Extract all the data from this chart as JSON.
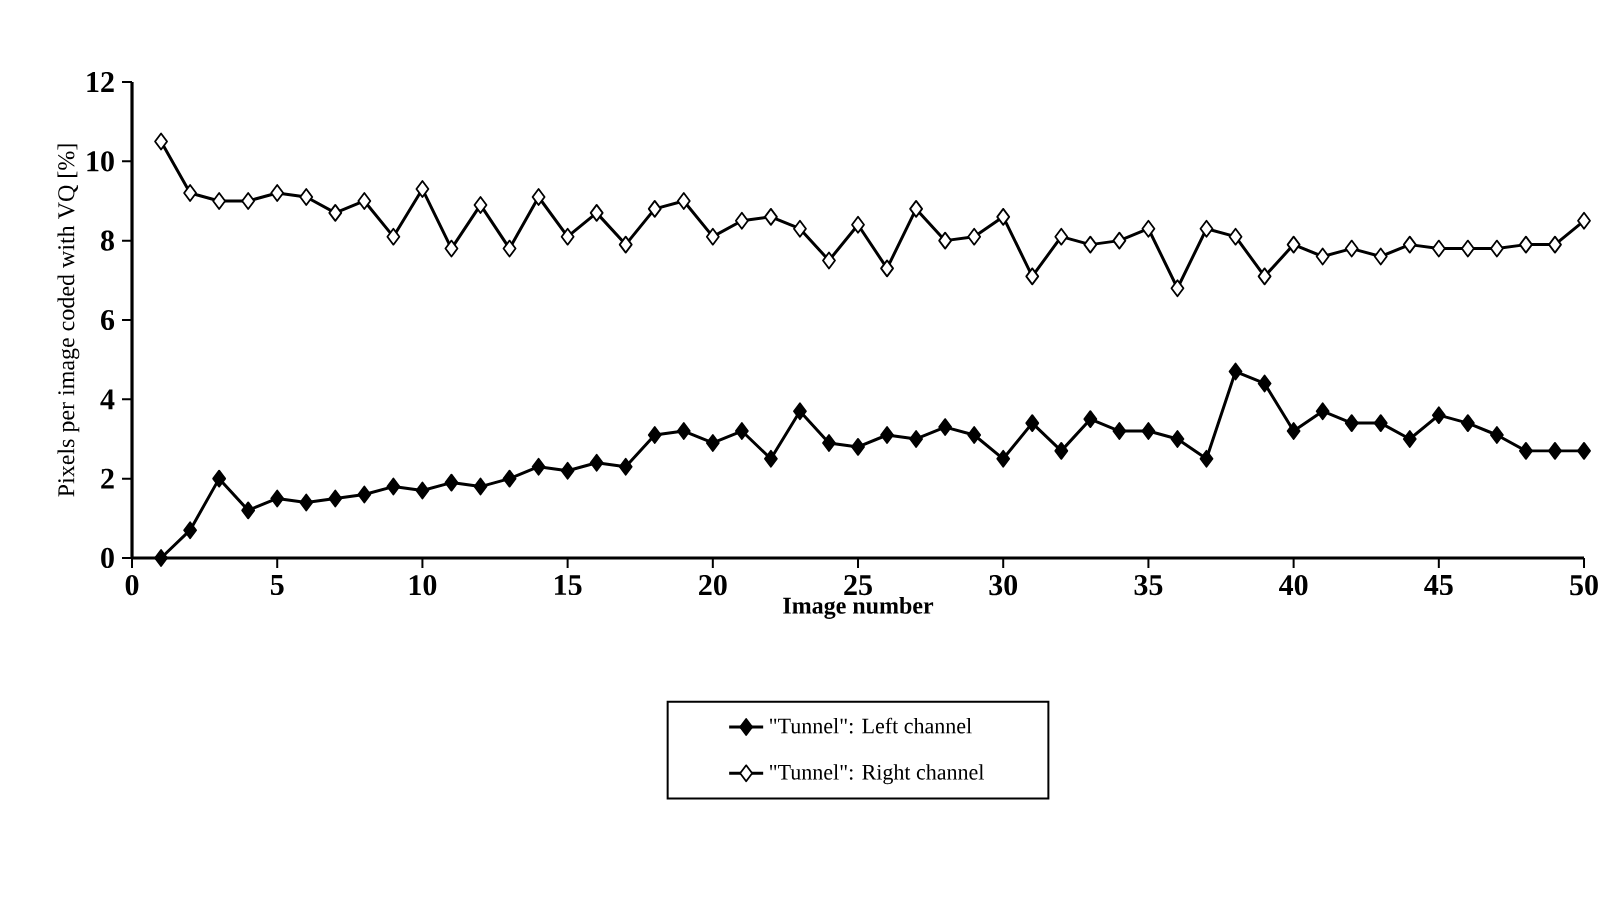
{
  "chart_data": {
    "type": "line",
    "xlabel": "Image number",
    "ylabel": "Pixels per image coded with VQ [%]",
    "x": [
      1,
      2,
      3,
      4,
      5,
      6,
      7,
      8,
      9,
      10,
      11,
      12,
      13,
      14,
      15,
      16,
      17,
      18,
      19,
      20,
      21,
      22,
      23,
      24,
      25,
      26,
      27,
      28,
      29,
      30,
      31,
      32,
      33,
      34,
      35,
      36,
      37,
      38,
      39,
      40,
      41,
      42,
      43,
      44,
      45,
      46,
      47,
      48,
      49,
      50
    ],
    "series": [
      {
        "name": "\"Tunnel\": Left channel",
        "color": "#000000",
        "values": [
          0,
          0.7,
          2.0,
          1.2,
          1.5,
          1.4,
          1.5,
          1.6,
          1.8,
          1.7,
          1.9,
          1.8,
          2.0,
          2.3,
          2.2,
          2.4,
          2.3,
          3.1,
          3.2,
          2.9,
          3.2,
          2.5,
          3.7,
          2.9,
          2.8,
          3.1,
          3.0,
          3.3,
          3.1,
          2.5,
          3.4,
          2.7,
          3.5,
          3.2,
          3.2,
          3.0,
          2.5,
          4.7,
          4.4,
          3.2,
          3.7,
          3.4,
          3.4,
          3.0,
          3.6,
          3.4,
          3.1,
          2.7,
          2.7,
          2.7
        ]
      },
      {
        "name": "\"Tunnel\": Right channel",
        "color": "#000000",
        "values": [
          10.5,
          9.2,
          9.0,
          9.0,
          9.2,
          9.1,
          8.7,
          9.0,
          8.1,
          9.3,
          7.8,
          8.9,
          7.8,
          9.1,
          8.1,
          8.7,
          7.9,
          8.8,
          9.0,
          8.1,
          8.5,
          8.6,
          8.3,
          7.5,
          8.4,
          7.3,
          8.8,
          8.0,
          8.1,
          8.6,
          7.1,
          8.1,
          7.9,
          8.0,
          8.3,
          6.8,
          8.3,
          8.1,
          7.1,
          7.9,
          7.6,
          7.8,
          7.6,
          7.9,
          7.8,
          7.8,
          7.8,
          7.9,
          7.9,
          8.5
        ]
      }
    ],
    "xlim": [
      0,
      50
    ],
    "xticks": [
      0,
      5,
      10,
      15,
      20,
      25,
      30,
      35,
      40,
      45,
      50
    ],
    "ylim": [
      0,
      12
    ],
    "yticks": [
      0,
      2,
      4,
      6,
      8,
      10,
      12
    ],
    "grid": false,
    "legend": "bottom",
    "marker": "diamond",
    "line_style": "solid"
  }
}
